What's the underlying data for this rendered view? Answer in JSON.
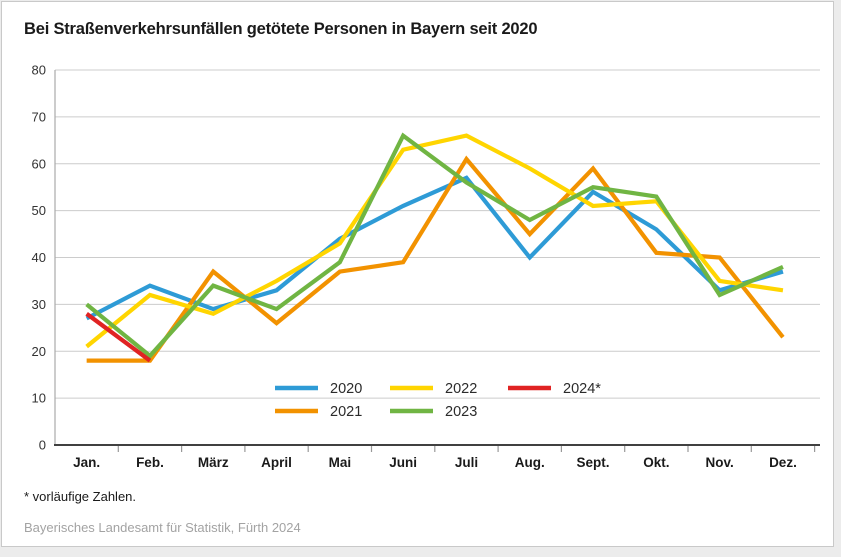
{
  "title": "Bei Straßenverkehrsunfällen getötete Personen in Bayern seit 2020",
  "footnote": "* vorläufige Zahlen.",
  "source": "Bayerisches Landesamt für Statistik, Fürth 2024",
  "chart_data": {
    "type": "line",
    "categories": [
      "Jan.",
      "Feb.",
      "März",
      "April",
      "Mai",
      "Juni",
      "Juli",
      "Aug.",
      "Sept.",
      "Okt.",
      "Nov.",
      "Dez."
    ],
    "series": [
      {
        "name": "2020",
        "color": "#2e9bd6",
        "values": [
          27,
          34,
          29,
          33,
          44,
          51,
          57,
          40,
          54,
          46,
          33,
          37
        ]
      },
      {
        "name": "2021",
        "color": "#f29200",
        "values": [
          18,
          18,
          37,
          26,
          37,
          39,
          61,
          45,
          59,
          41,
          40,
          23
        ]
      },
      {
        "name": "2022",
        "color": "#ffd500",
        "values": [
          21,
          32,
          28,
          35,
          43,
          63,
          66,
          59,
          51,
          52,
          35,
          33
        ]
      },
      {
        "name": "2023",
        "color": "#70b543",
        "values": [
          30,
          19,
          34,
          29,
          39,
          66,
          56,
          48,
          55,
          53,
          32,
          38
        ]
      },
      {
        "name": "2024*",
        "color": "#e02323",
        "values": [
          28,
          18,
          null,
          null,
          null,
          null,
          null,
          null,
          null,
          null,
          null,
          null
        ]
      }
    ],
    "ylim": [
      0,
      80
    ],
    "ytick_step": 10,
    "grid": true,
    "legend_position": "inside-bottom-center",
    "colors": {
      "gridline": "#cccccc",
      "axis_line": "#404040",
      "tick": "#999999",
      "axis_text": "#333333",
      "legend_text": "#2b2b2b"
    }
  }
}
